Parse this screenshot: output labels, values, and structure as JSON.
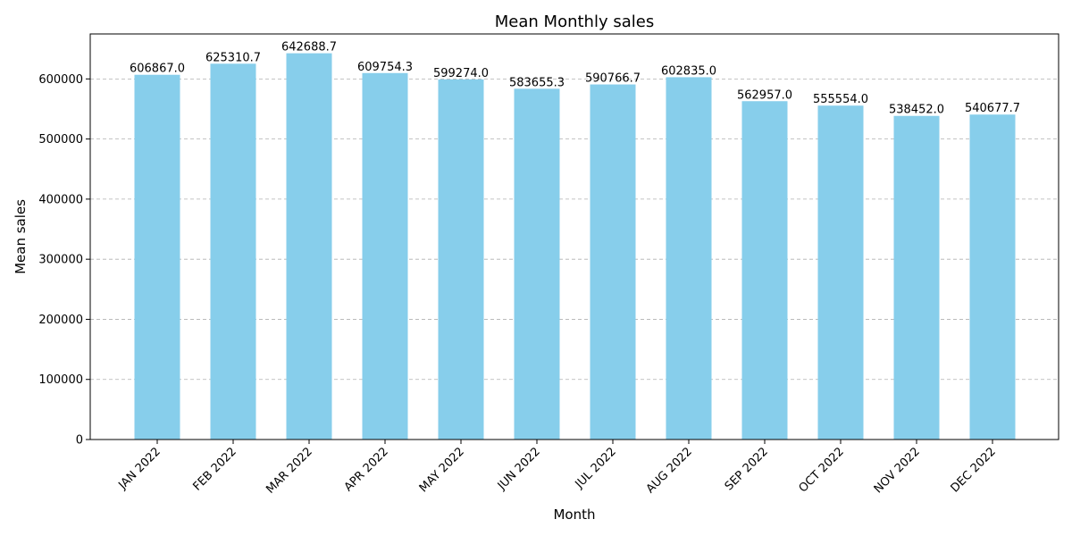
{
  "chart_data": {
    "type": "bar",
    "title": "Mean Monthly sales",
    "xlabel": "Month",
    "ylabel": "Mean sales",
    "categories": [
      "JAN 2022",
      "FEB 2022",
      "MAR 2022",
      "APR 2022",
      "MAY 2022",
      "JUN 2022",
      "JUL 2022",
      "AUG 2022",
      "SEP 2022",
      "OCT 2022",
      "NOV 2022",
      "DEC 2022"
    ],
    "values": [
      606867.0,
      625310.7,
      642688.7,
      609754.3,
      599274.0,
      583655.3,
      590766.7,
      602835.0,
      562957.0,
      555554.0,
      538452.0,
      540677.7
    ],
    "data_labels": [
      "606867.0",
      "625310.7",
      "642688.7",
      "609754.3",
      "599274.0",
      "583655.3",
      "590766.7",
      "602835.0",
      "562957.0",
      "555554.0",
      "538452.0",
      "540677.7"
    ],
    "ylim": [
      0,
      674823
    ],
    "yticks": [
      0,
      100000,
      200000,
      300000,
      400000,
      500000,
      600000
    ],
    "ytick_labels": [
      "0",
      "100000",
      "200000",
      "300000",
      "400000",
      "500000",
      "600000"
    ],
    "grid": "y-dashed",
    "legend": "none",
    "bar_color": "#87ceeb"
  }
}
